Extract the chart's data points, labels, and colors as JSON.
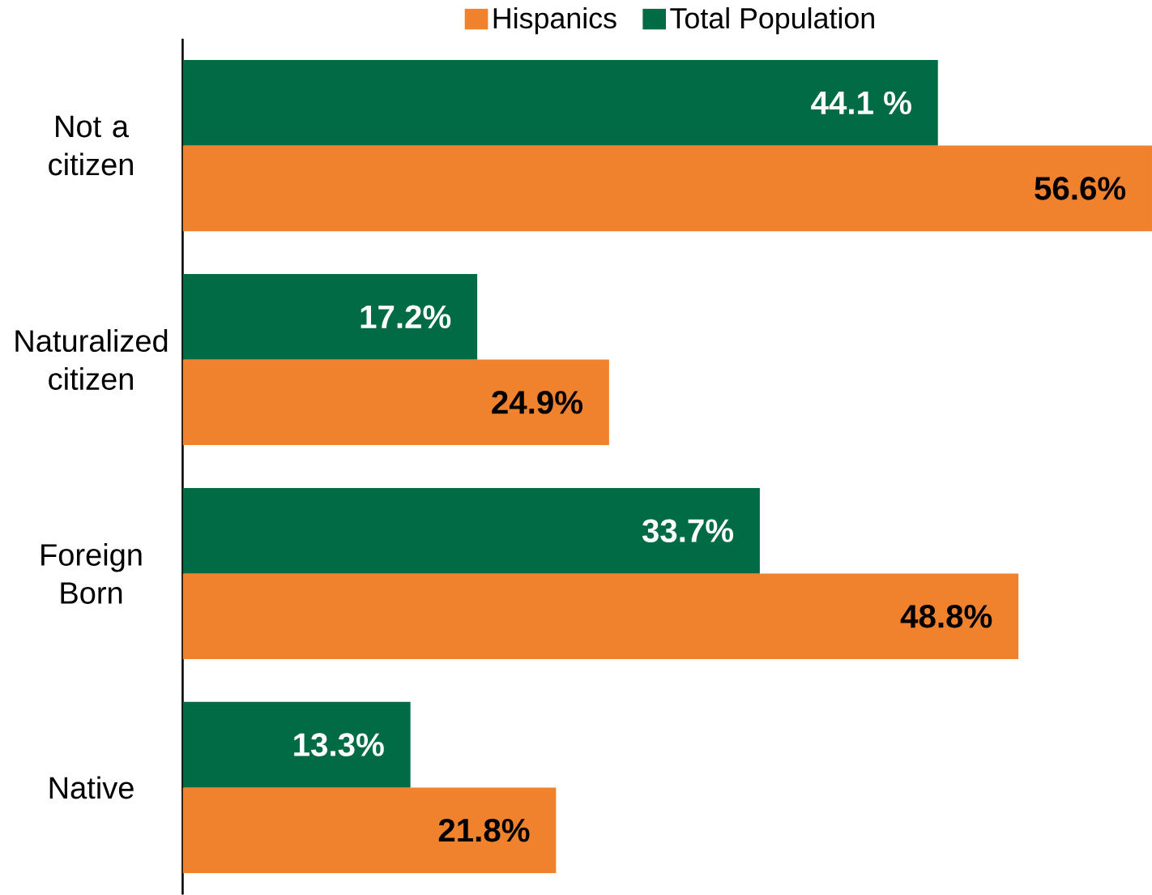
{
  "chart_data": {
    "type": "bar",
    "orientation": "horizontal",
    "categories": [
      "Not a citizen",
      "Naturalized citizen",
      "Foreign Born",
      "Native"
    ],
    "series": [
      {
        "name": "Hispanics",
        "color": "#f0822d",
        "values": [
          56.6,
          24.9,
          48.8,
          21.8
        ],
        "value_labels": [
          "56.6%",
          "24.9%",
          "48.8%",
          "21.8%"
        ]
      },
      {
        "name": "Total Population",
        "color": "#006b45",
        "values": [
          44.1,
          17.2,
          33.7,
          13.3
        ],
        "value_labels": [
          "44.1 %",
          "17.2%",
          "33.7%",
          "13.3%"
        ]
      }
    ],
    "legend": "top"
  }
}
